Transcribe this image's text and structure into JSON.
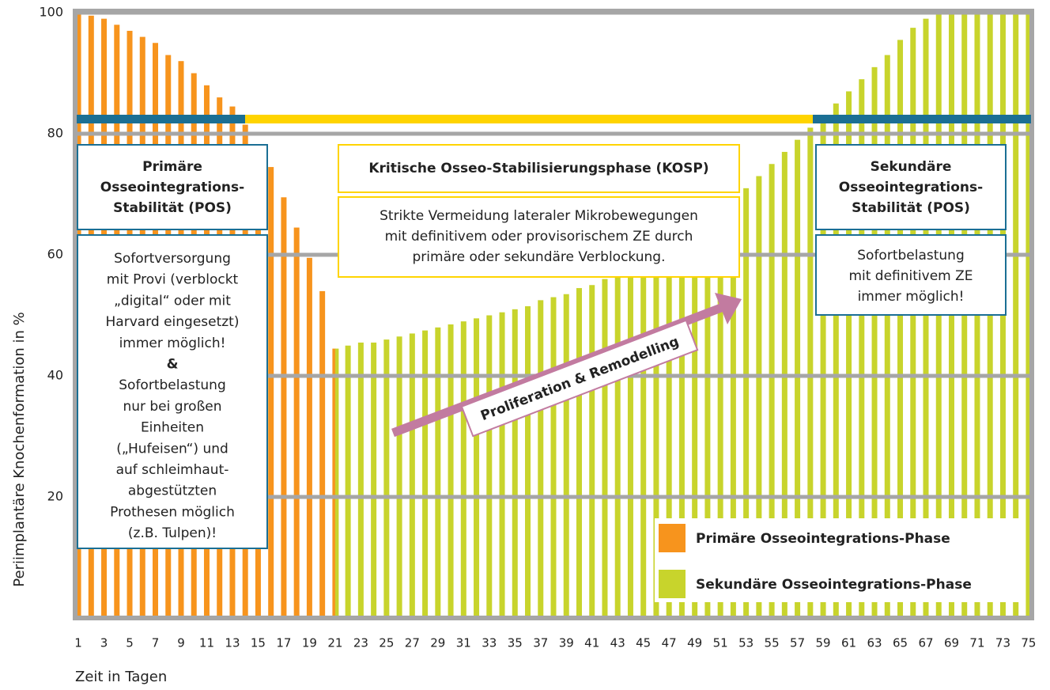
{
  "chart_data": {
    "type": "bar",
    "x": [
      1,
      2,
      3,
      4,
      5,
      6,
      7,
      8,
      9,
      10,
      11,
      12,
      13,
      14,
      15,
      16,
      17,
      18,
      19,
      20,
      21,
      22,
      23,
      24,
      25,
      26,
      27,
      28,
      29,
      30,
      31,
      32,
      33,
      34,
      35,
      36,
      37,
      38,
      39,
      40,
      41,
      42,
      43,
      44,
      45,
      46,
      47,
      48,
      49,
      50,
      51,
      52,
      53,
      54,
      55,
      56,
      57,
      58,
      59,
      60,
      61,
      62,
      63,
      64,
      65,
      66,
      67,
      68,
      69,
      70,
      71,
      72,
      73,
      74,
      75
    ],
    "xlim": [
      0.75,
      75.25
    ],
    "xticks": [
      1,
      3,
      5,
      7,
      9,
      11,
      13,
      15,
      17,
      19,
      21,
      23,
      25,
      27,
      29,
      31,
      33,
      35,
      37,
      39,
      41,
      43,
      45,
      47,
      49,
      51,
      53,
      55,
      57,
      59,
      61,
      63,
      65,
      67,
      69,
      71,
      73,
      75
    ],
    "ylim": [
      0,
      100
    ],
    "yticks": [
      20,
      40,
      60,
      80,
      100
    ],
    "grid": true,
    "xlabel": "Zeit in Tagen",
    "ylabel": "Periimplantäre Knochenformation in %",
    "legend": "lower right",
    "series": [
      {
        "name": "Primäre Osseointegrations-Phase",
        "color": "#f7941d",
        "values": [
          100,
          99.5,
          99,
          98,
          97,
          96,
          95,
          93,
          92,
          90,
          88,
          86,
          84.5,
          81.5,
          78,
          74.5,
          69.5,
          64.5,
          59.5,
          54,
          44.5,
          null,
          null,
          null,
          null,
          null,
          null,
          null,
          null,
          null,
          null,
          null,
          null,
          null,
          null,
          null,
          null,
          null,
          null,
          null,
          null,
          null,
          null,
          null,
          null,
          null,
          null,
          null,
          null,
          null,
          null,
          null,
          null,
          null,
          null,
          null,
          null,
          null,
          null,
          null,
          null,
          null,
          null,
          null,
          null,
          null,
          null,
          null,
          null,
          null,
          null,
          null,
          null,
          null,
          null
        ]
      },
      {
        "name": "Sekundäre Osseointegrations-Phase",
        "color": "#c8d42c",
        "values": [
          null,
          null,
          null,
          null,
          null,
          null,
          null,
          null,
          null,
          null,
          null,
          null,
          null,
          null,
          null,
          null,
          null,
          null,
          null,
          null,
          44.5,
          45,
          45.5,
          45.5,
          46,
          46.5,
          47,
          47.5,
          48,
          48.5,
          49,
          49.5,
          50,
          50.5,
          51,
          51.5,
          52.5,
          53,
          53.5,
          54.5,
          55,
          56,
          57,
          58,
          59,
          60,
          61,
          62.5,
          64,
          65.5,
          67,
          69,
          71,
          73,
          75,
          77,
          79,
          81,
          83,
          85,
          87,
          89,
          91,
          93,
          95.5,
          97.5,
          99,
          100,
          100,
          100,
          100,
          100,
          100,
          100,
          100
        ]
      }
    ],
    "annotations": [
      {
        "lines": [
          "Primäre",
          "Osseointegrations-",
          "Stabilität (POS)"
        ]
      },
      {
        "lines": [
          "Sofortversorgung",
          "mit Provi (verblockt",
          "„digital“ oder mit",
          "Harvard eingesetzt)",
          "immer möglich!",
          "&",
          "Sofortbelastung",
          "nur bei großen",
          "Einheiten",
          "(„Hufeisen“) und",
          "auf schleimhaut-",
          "abgestützten",
          "Prothesen möglich",
          "(z.B. Tulpen)!"
        ]
      },
      {
        "lines": [
          "Kritische Osseo-Stabilisierungsphase (KOSP)"
        ]
      },
      {
        "lines": [
          "Strikte Vermeidung lateraler Mikrobewegungen",
          "mit definitivem oder provisorischem ZE durch",
          "primäre oder sekundäre Verblockung."
        ]
      },
      {
        "lines": [
          "Sekundäre",
          "Osseointegrations-",
          "Stabilität (POS)"
        ]
      },
      {
        "lines": [
          "Sofortbelastung",
          "mit definitivem ZE",
          "immer möglich!"
        ]
      }
    ],
    "arrow_label": "Proliferation & Remodelling"
  }
}
